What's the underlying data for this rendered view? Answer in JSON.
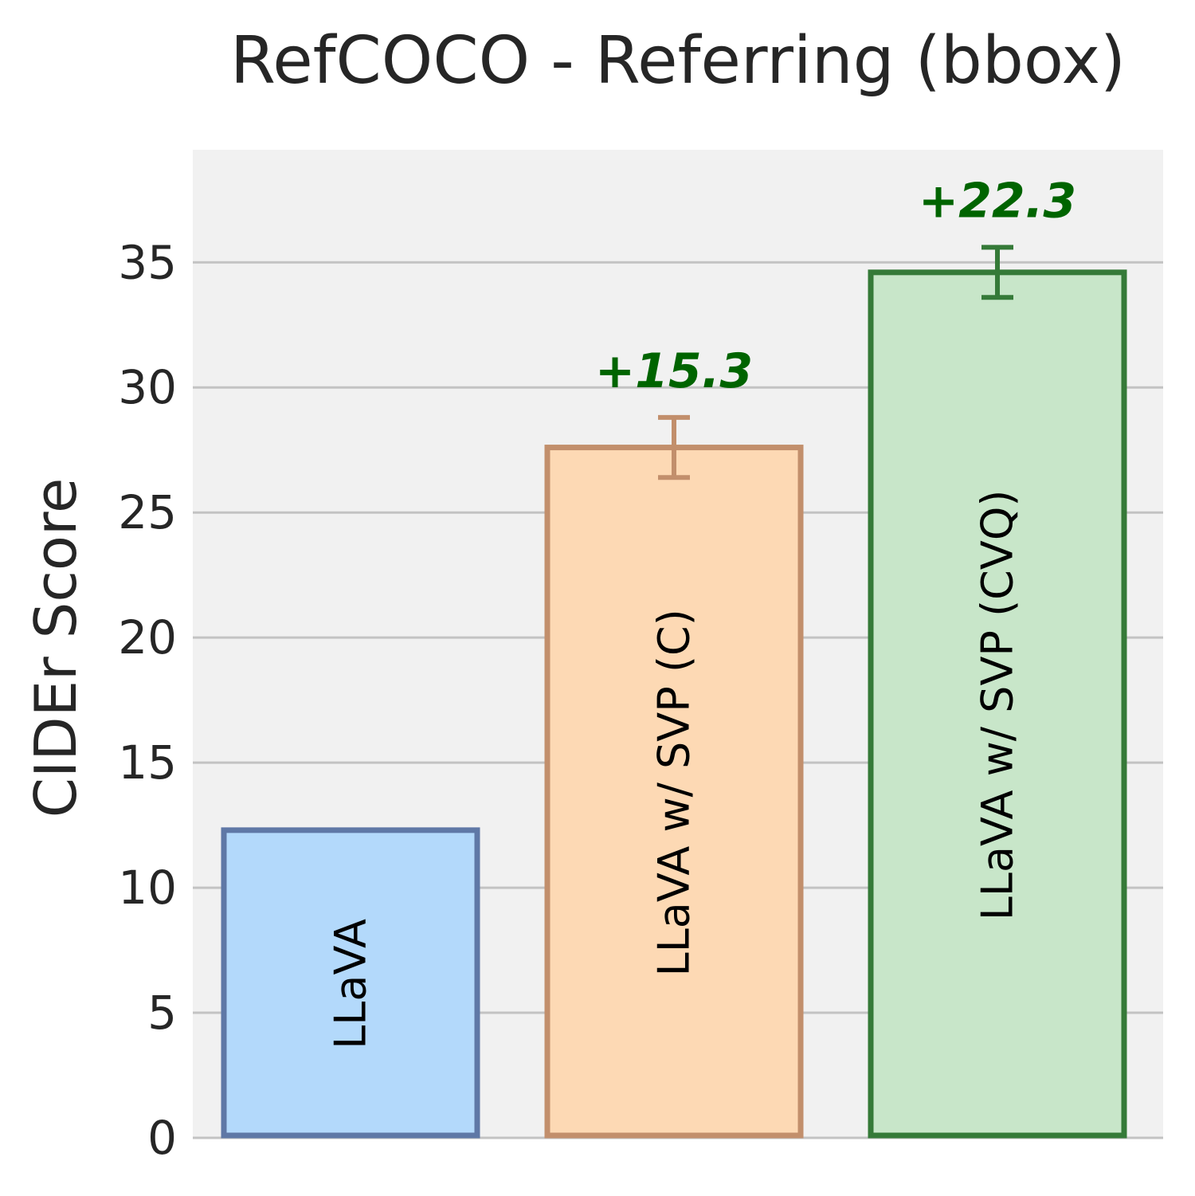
{
  "chart_data": {
    "type": "bar",
    "title": "RefCOCO - Referring (bbox)",
    "xlabel": "",
    "ylabel": "CIDEr Score",
    "ylim": [
      0,
      39.5
    ],
    "yticks": [
      0,
      5,
      10,
      15,
      20,
      25,
      30,
      35
    ],
    "grid": true,
    "categories": [
      "LLaVA",
      "LLaVA w/ SVP (C)",
      "LLaVA w/ SVP (CVQ)"
    ],
    "values": [
      12.3,
      27.6,
      34.6
    ],
    "error": [
      null,
      1.2,
      1.0
    ],
    "annotations": [
      null,
      "+15.3",
      "+22.3"
    ],
    "fill_colors": [
      "#b3d9fb",
      "#fdd9b4",
      "#c8e6c9"
    ],
    "edge_colors": [
      "#5f78a6",
      "#c28f6c",
      "#357a38"
    ],
    "annotation_color": "#006400",
    "background": "#f1f1f1",
    "grid_color": "#c3c3c3"
  }
}
